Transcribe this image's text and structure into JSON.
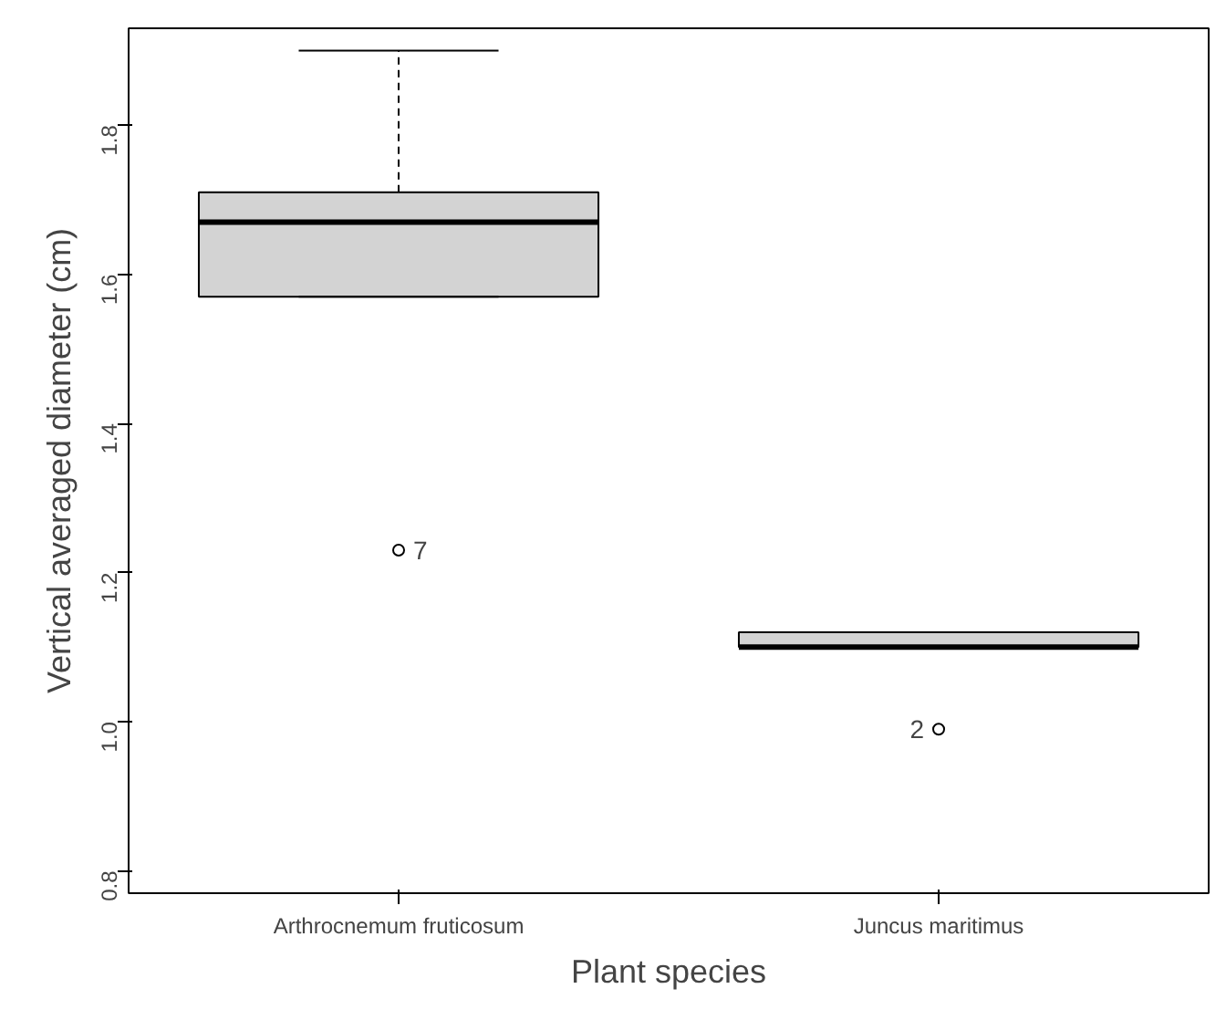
{
  "chart_data": {
    "type": "box",
    "xlabel": "Plant species",
    "ylabel": "Vertical averaged diameter (cm)",
    "categories": [
      "Arthrocnemum fruticosum",
      "Juncus maritimus"
    ],
    "color": "#d3d3d3",
    "boxes": [
      {
        "low": 1.57,
        "q1": 1.57,
        "median": 1.67,
        "q3": 1.71,
        "high": 1.9,
        "outliers": [
          1.23
        ]
      },
      {
        "low": 1.1,
        "q1": 1.1,
        "median": 1.1,
        "q3": 1.12,
        "high": 1.12,
        "outliers": [
          0.99
        ]
      }
    ],
    "ylim": [
      0.77,
      1.93
    ],
    "yticks": [
      {
        "value": 0.8,
        "label": "0.8"
      },
      {
        "value": 1,
        "label": "1.0"
      },
      {
        "value": 1.2,
        "label": "1.2"
      },
      {
        "value": 1.4,
        "label": "1.4"
      },
      {
        "value": 1.6,
        "label": "1.6"
      },
      {
        "value": 1.8,
        "label": "1.8"
      }
    ],
    "annotations": [
      "7",
      "2"
    ],
    "grid": false
  }
}
